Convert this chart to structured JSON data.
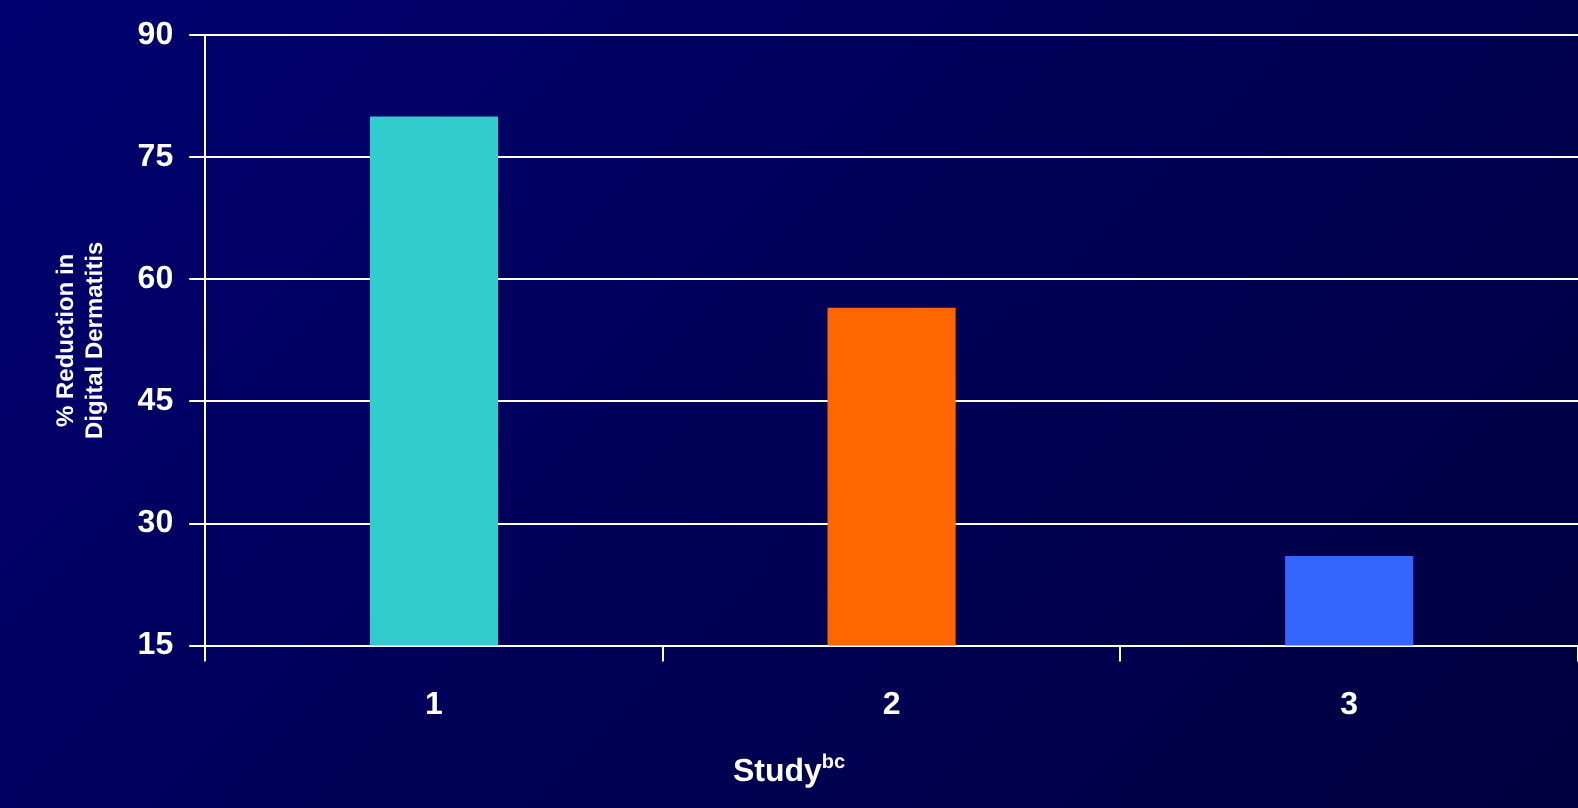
{
  "chart_data": {
    "type": "bar",
    "categories": [
      "1",
      "2",
      "3"
    ],
    "values": [
      80,
      56.5,
      26
    ],
    "colors": [
      "#33cccc",
      "#ff6600",
      "#3366ff"
    ],
    "ylim": [
      15,
      90
    ],
    "yticks": [
      15,
      30,
      45,
      60,
      75,
      90
    ],
    "grid": "y",
    "legend": false,
    "ylabel": "% Reduction in\nDigital Dermatitis",
    "xlabel": "Study$^{bc}$"
  }
}
